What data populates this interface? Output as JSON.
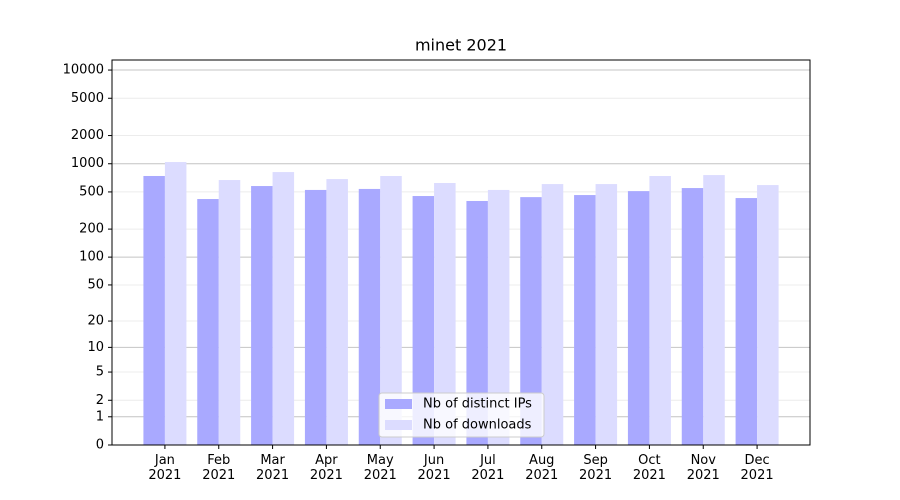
{
  "chart_data": {
    "type": "bar",
    "title": "minet 2021",
    "categories": [
      "Jan\n2021",
      "Feb\n2021",
      "Mar\n2021",
      "Apr\n2021",
      "May\n2021",
      "Jun\n2021",
      "Jul\n2021",
      "Aug\n2021",
      "Sep\n2021",
      "Oct\n2021",
      "Nov\n2021",
      "Dec\n2021"
    ],
    "series": [
      {
        "name": "Nb of distinct IPs",
        "color": "#a9a9ff",
        "values": [
          740,
          420,
          578,
          525,
          538,
          452,
          400,
          440,
          463,
          510,
          550,
          430
        ]
      },
      {
        "name": "Nb of downloads",
        "color": "#dcdcff",
        "values": [
          1043,
          670,
          815,
          686,
          740,
          623,
          525,
          607,
          607,
          740,
          757,
          592
        ]
      }
    ],
    "yscale": "symlog",
    "ylim": [
      0,
      12800
    ],
    "yticks": [
      0,
      1,
      2,
      5,
      10,
      20,
      50,
      100,
      200,
      500,
      1000,
      2000,
      5000,
      10000
    ],
    "grid": true,
    "legend": "lower center"
  }
}
